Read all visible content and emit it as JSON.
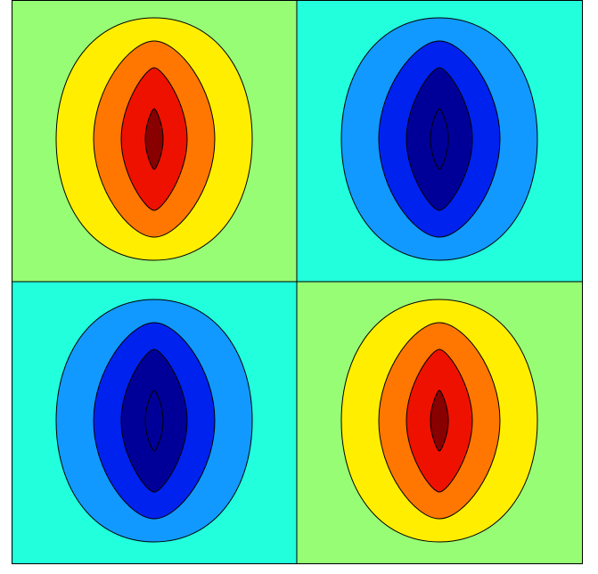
{
  "chart_data": {
    "type": "contour",
    "quadrants": [
      {
        "background": "#97fd75",
        "colors": [
          "#ffee00",
          "#ff7700",
          "#ee1100",
          "#880000"
        ]
      },
      {
        "background": "#22ffdd",
        "colors": [
          "#1199ff",
          "#0022ee",
          "#000099",
          "#000099"
        ]
      },
      {
        "background": "#22ffdd",
        "colors": [
          "#1199ff",
          "#0022ee",
          "#000099",
          "#000099"
        ]
      },
      {
        "background": "#97fd75",
        "colors": [
          "#ffee00",
          "#ff7700",
          "#ee1100",
          "#880000"
        ]
      }
    ]
  }
}
